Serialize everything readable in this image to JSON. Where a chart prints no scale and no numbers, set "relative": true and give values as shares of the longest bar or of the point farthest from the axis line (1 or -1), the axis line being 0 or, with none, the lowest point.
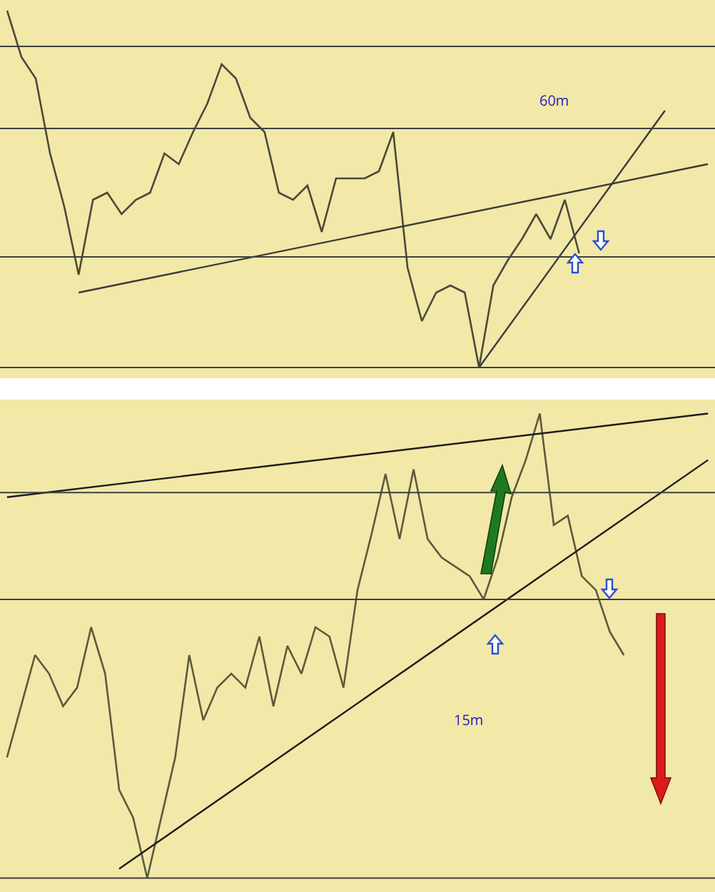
{
  "chart_data": [
    {
      "type": "line",
      "relative": true,
      "annotations": [
        "60m"
      ],
      "categories": [
        null,
        null,
        null,
        null,
        null,
        null,
        null,
        null,
        null,
        null,
        null,
        null,
        null,
        null,
        null,
        null,
        null,
        null,
        null,
        null,
        null,
        null,
        null,
        null,
        null,
        null,
        null,
        null,
        null,
        null,
        null,
        null,
        null,
        null,
        null,
        null,
        null,
        null,
        null,
        null,
        null,
        null,
        null,
        null,
        null,
        null,
        null,
        null,
        null,
        null
      ],
      "series": [
        {
          "color": "#4a4a3a",
          "values": [
            1.0,
            0.87,
            0.81,
            0.6,
            0.45,
            0.26,
            0.47,
            0.49,
            0.43,
            0.47,
            0.49,
            0.6,
            0.57,
            0.66,
            0.74,
            0.85,
            0.81,
            0.7,
            0.66,
            0.49,
            0.47,
            0.51,
            0.38,
            0.53,
            0.53,
            0.53,
            0.55,
            0.66,
            0.28,
            0.13,
            0.21,
            0.23,
            0.21,
            0.0,
            0.23,
            0.3,
            0.36,
            0.43,
            0.36,
            0.47,
            0.32,
            null,
            null,
            null,
            null,
            null,
            null,
            null,
            null,
            null
          ]
        },
        {
          "type": "line",
          "color": "#3a3a3a",
          "values": [
            null,
            null,
            null,
            null,
            null,
            0.21,
            null,
            null,
            null,
            null,
            null,
            null,
            null,
            null,
            null,
            null,
            null,
            null,
            null,
            null,
            null,
            null,
            null,
            null,
            null,
            null,
            null,
            null,
            null,
            null,
            null,
            null,
            null,
            null,
            null,
            null,
            null,
            null,
            null,
            null,
            null,
            null,
            null,
            null,
            null,
            null,
            null,
            null,
            null,
            0.57
          ]
        },
        {
          "type": "line",
          "color": "#3a3a3a",
          "values": [
            null,
            null,
            null,
            null,
            null,
            null,
            null,
            null,
            null,
            null,
            null,
            null,
            null,
            null,
            null,
            null,
            null,
            null,
            null,
            null,
            null,
            null,
            null,
            null,
            null,
            null,
            null,
            null,
            null,
            null,
            null,
            null,
            null,
            0.0,
            null,
            null,
            null,
            null,
            null,
            null,
            null,
            null,
            null,
            null,
            null,
            null,
            0.72,
            null,
            null,
            null
          ]
        }
      ],
      "ref_lines": [
        {
          "axis": "y",
          "value": 0.9,
          "color": "#404040"
        },
        {
          "axis": "y",
          "value": 0.67,
          "color": "#404040"
        },
        {
          "axis": "y",
          "value": 0.31,
          "color": "#404040"
        },
        {
          "axis": "y",
          "value": 0,
          "color": "#404040"
        }
      ]
    },
    {
      "type": "line",
      "relative": true,
      "annotations": [
        "15m"
      ],
      "categories": [
        null,
        null,
        null,
        null,
        null,
        null,
        null,
        null,
        null,
        null,
        null,
        null,
        null,
        null,
        null,
        null,
        null,
        null,
        null,
        null,
        null,
        null,
        null,
        null,
        null,
        null,
        null,
        null,
        null,
        null,
        null,
        null,
        null,
        null,
        null,
        null,
        null,
        null,
        null,
        null,
        null,
        null,
        null,
        null,
        null,
        null,
        null,
        null,
        null,
        null,
        null
      ],
      "series": [
        {
          "color": "#5b5a3c",
          "values": [
            0.26,
            0.37,
            0.48,
            0.44,
            0.37,
            0.41,
            0.54,
            0.44,
            0.19,
            0.13,
            0.0,
            0.13,
            0.26,
            0.48,
            0.34,
            0.41,
            0.44,
            0.41,
            0.52,
            0.37,
            0.5,
            0.44,
            0.54,
            0.52,
            0.41,
            0.62,
            0.74,
            0.87,
            0.73,
            0.88,
            0.73,
            0.69,
            0.67,
            0.65,
            0.6,
            0.69,
            0.82,
            0.9,
            1.0,
            0.76,
            0.78,
            0.65,
            0.62,
            0.53,
            0.48,
            null,
            null,
            null,
            null,
            null,
            null
          ]
        },
        {
          "type": "line",
          "color": "#1c1c1c",
          "values": [
            0.82,
            null,
            null,
            null,
            null,
            null,
            null,
            null,
            null,
            null,
            null,
            null,
            null,
            null,
            null,
            null,
            null,
            null,
            null,
            null,
            null,
            null,
            null,
            null,
            null,
            null,
            null,
            null,
            null,
            null,
            null,
            null,
            null,
            null,
            null,
            null,
            null,
            null,
            null,
            null,
            null,
            null,
            null,
            null,
            null,
            null,
            null,
            null,
            null,
            null,
            1.0
          ]
        },
        {
          "type": "line",
          "color": "#1c1c1c",
          "values": [
            null,
            null,
            null,
            null,
            null,
            null,
            null,
            null,
            0.02,
            null,
            null,
            null,
            null,
            null,
            null,
            null,
            null,
            null,
            null,
            null,
            null,
            null,
            null,
            null,
            null,
            null,
            null,
            null,
            null,
            null,
            null,
            null,
            null,
            null,
            null,
            null,
            null,
            null,
            null,
            null,
            null,
            null,
            null,
            null,
            null,
            null,
            null,
            null,
            null,
            null,
            0.9
          ]
        }
      ],
      "ref_lines": [
        {
          "axis": "y",
          "value": 0.83,
          "color": "#404040"
        },
        {
          "axis": "y",
          "value": 0.6,
          "color": "#404040"
        },
        {
          "axis": "y",
          "value": 0,
          "color": "#404040"
        }
      ]
    }
  ]
}
